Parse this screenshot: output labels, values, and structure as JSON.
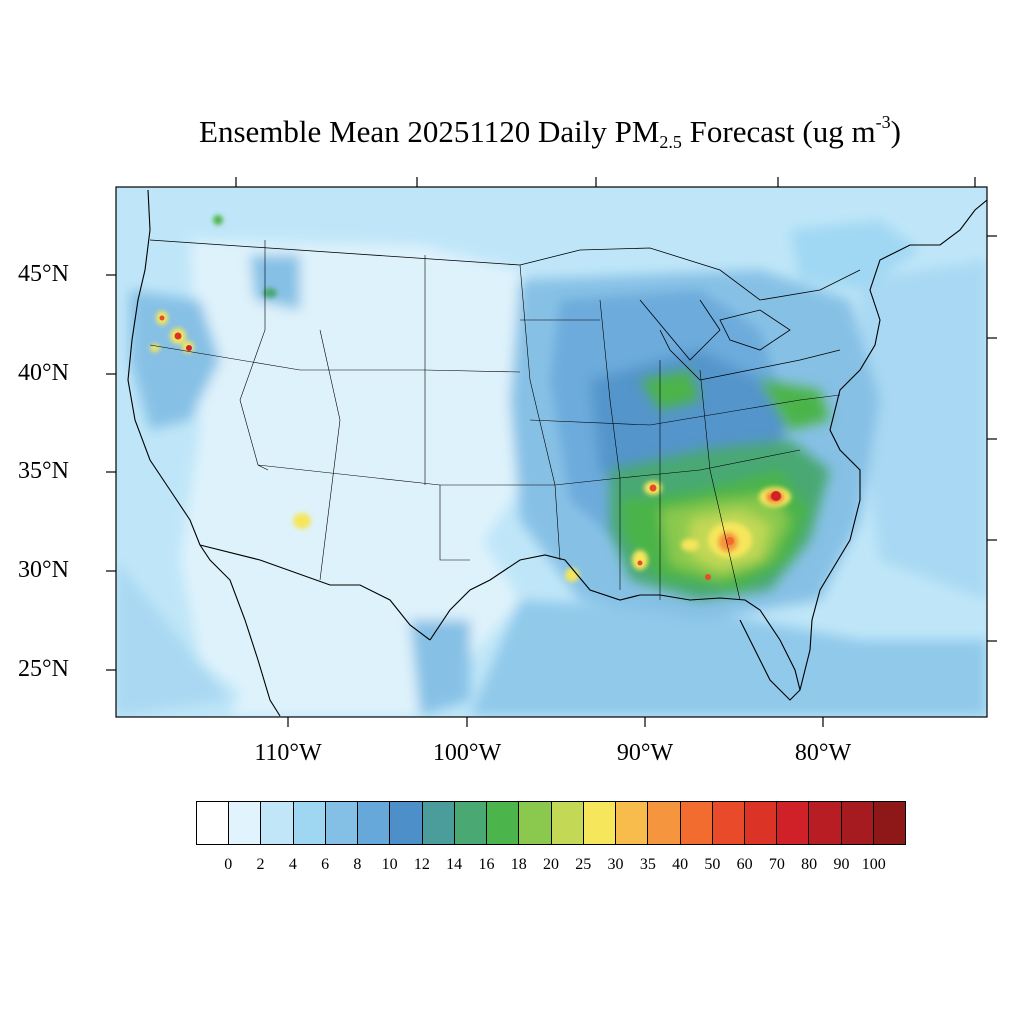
{
  "title": {
    "main": "Ensemble Mean 20251120 Daily PM",
    "sub": "2.5",
    "mid": " Forecast (ug m",
    "sup": "-3",
    "end": ")"
  },
  "map": {
    "lat_labels": [
      "45°N",
      "40°N",
      "35°N",
      "30°N",
      "25°N"
    ],
    "lon_labels": [
      "110°W",
      "100°W",
      "90°W",
      "80°W"
    ],
    "background_color": "#bfe6f8"
  },
  "colorbar": {
    "colors": [
      "#ffffff",
      "#e1f3fc",
      "#c1e6f7",
      "#9fd7f3",
      "#84bfe5",
      "#66a8da",
      "#4d8fc9",
      "#4b9d9b",
      "#4aa873",
      "#4bb44a",
      "#8bc94e",
      "#c3d854",
      "#f6e65c",
      "#f7bc4c",
      "#f5953e",
      "#f16c2e",
      "#e94b2a",
      "#dc3327",
      "#d12128",
      "#b91d24",
      "#a51b1f",
      "#8e1717"
    ],
    "labels": [
      "0",
      "2",
      "4",
      "6",
      "8",
      "10",
      "12",
      "14",
      "16",
      "18",
      "20",
      "25",
      "30",
      "35",
      "40",
      "50",
      "60",
      "70",
      "80",
      "90",
      "100"
    ]
  }
}
